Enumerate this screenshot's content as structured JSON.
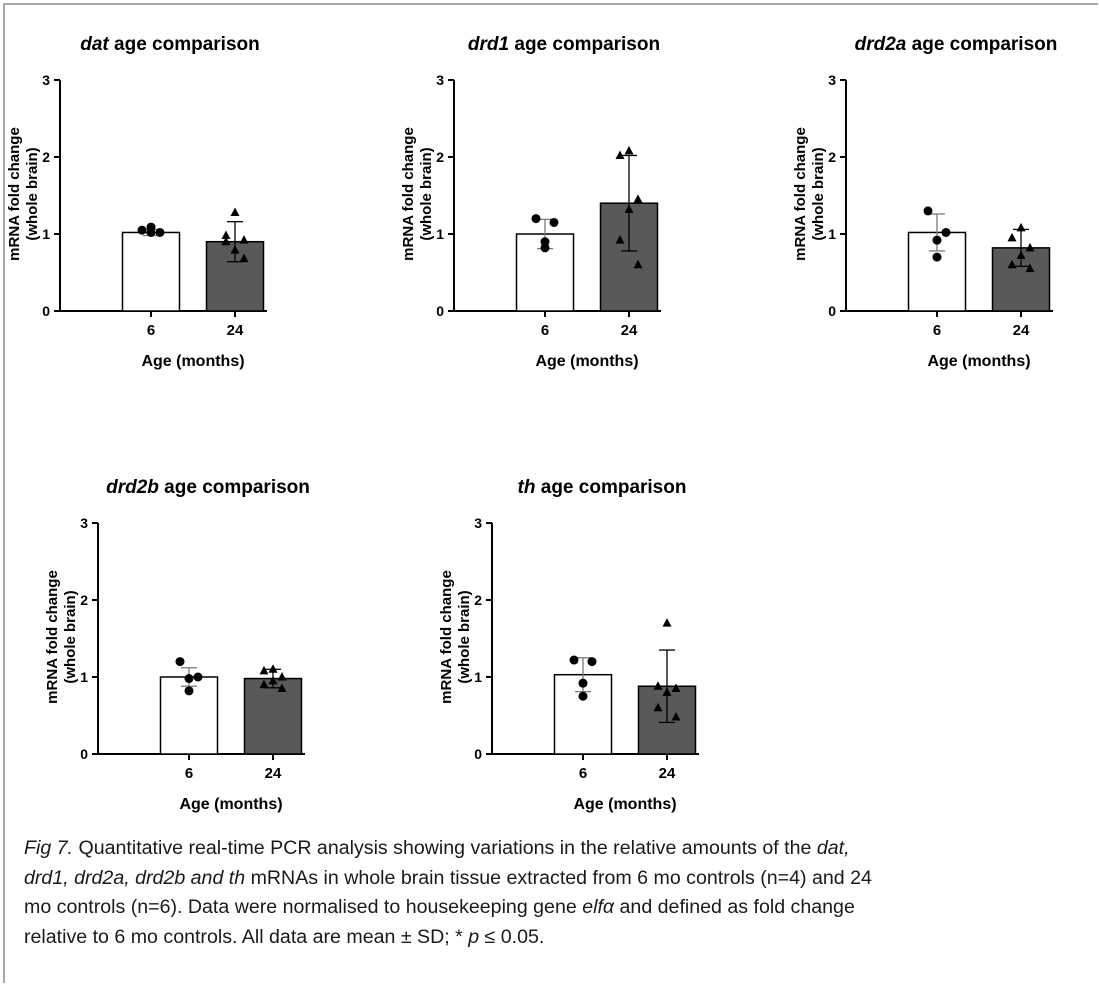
{
  "chart_data": [
    {
      "type": "bar",
      "gene": "dat",
      "title_suffix": " age comparison",
      "ylabel": [
        "mRNA fold change",
        "(whole brain)"
      ],
      "xlabel": "Age (months)",
      "ylim": [
        0,
        3
      ],
      "yticks": [
        "0",
        "1",
        "2",
        "3"
      ],
      "categories": [
        "6",
        "24"
      ],
      "series": [
        {
          "values": [
            1.02,
            0.9
          ],
          "sd": [
            0.04,
            0.26
          ]
        }
      ],
      "points": [
        [
          1.05,
          1.02,
          1.02,
          1.09
        ],
        [
          1.28,
          0.98,
          0.92,
          0.79,
          0.9,
          0.68
        ]
      ]
    },
    {
      "type": "bar",
      "gene": "drd1",
      "title_suffix": " age comparison",
      "ylabel": [
        "mRNA fold change",
        "(whole brain)"
      ],
      "xlabel": "Age (months)",
      "ylim": [
        0,
        3
      ],
      "yticks": [
        "0",
        "1",
        "2",
        "3"
      ],
      "categories": [
        "6",
        "24"
      ],
      "series": [
        {
          "values": [
            1.0,
            1.4
          ],
          "sd": [
            0.19,
            0.62
          ]
        }
      ],
      "points": [
        [
          1.2,
          1.15,
          0.9,
          0.82
        ],
        [
          2.08,
          2.02,
          1.45,
          1.32,
          0.92,
          0.6
        ]
      ]
    },
    {
      "type": "bar",
      "gene": "drd2a",
      "title_suffix": " age comparison",
      "ylabel": [
        "mRNA fold change",
        "(whole brain)"
      ],
      "xlabel": "Age (months)",
      "ylim": [
        0,
        3
      ],
      "yticks": [
        "0",
        "1",
        "2",
        "3"
      ],
      "categories": [
        "6",
        "24"
      ],
      "series": [
        {
          "values": [
            1.02,
            0.82
          ],
          "sd": [
            0.24,
            0.24
          ]
        }
      ],
      "points": [
        [
          1.3,
          1.02,
          0.92,
          0.7
        ],
        [
          1.08,
          0.95,
          0.82,
          0.72,
          0.6,
          0.55
        ]
      ]
    },
    {
      "type": "bar",
      "gene": "drd2b",
      "title_suffix": " age comparison",
      "ylabel": [
        "mRNA fold change",
        "(whole brain)"
      ],
      "xlabel": "Age (months)",
      "ylim": [
        0,
        3
      ],
      "yticks": [
        "0",
        "1",
        "2",
        "3"
      ],
      "categories": [
        "6",
        "24"
      ],
      "series": [
        {
          "values": [
            1.0,
            0.98
          ],
          "sd": [
            0.12,
            0.12
          ]
        }
      ],
      "points": [
        [
          1.2,
          1.0,
          0.98,
          0.82
        ],
        [
          1.1,
          1.08,
          1.0,
          0.95,
          0.9,
          0.85
        ]
      ]
    },
    {
      "type": "bar",
      "gene": "th",
      "title_suffix": " age comparison",
      "ylabel": [
        "mRNA fold change",
        "(whole brain)"
      ],
      "xlabel": "Age (months)",
      "ylim": [
        0,
        3
      ],
      "yticks": [
        "0",
        "1",
        "2",
        "3"
      ],
      "categories": [
        "6",
        "24"
      ],
      "series": [
        {
          "values": [
            1.03,
            0.88
          ],
          "sd": [
            0.22,
            0.47
          ]
        }
      ],
      "points": [
        [
          1.22,
          1.2,
          0.92,
          0.75
        ],
        [
          1.7,
          0.88,
          0.85,
          0.8,
          0.6,
          0.48
        ]
      ]
    }
  ],
  "style": {
    "bar_colors": [
      "#ffffff",
      "#595959"
    ],
    "bar_stroke": "#000000",
    "marker_shapes": [
      "circle",
      "triangle"
    ]
  },
  "caption": {
    "fig_label": "Fig 7.",
    "line1_a": " Quantitative real-time PCR analysis showing variations in the relative amounts of the ",
    "line1_gene": "dat,",
    "line2_genes": "drd1, drd2a, drd2b and th",
    "line2_b": " mRNAs in whole brain tissue extracted from 6 mo controls (n=4) and 24",
    "line3_a": "mo controls (n=6). Data were normalised to housekeeping gene ",
    "line3_gene": "elfα",
    "line3_b": " and defined as fold change",
    "line4_a": "relative to 6 mo controls. All data are mean ± SD; * ",
    "line4_p": "p",
    "line4_b": " ≤ 0.05."
  }
}
